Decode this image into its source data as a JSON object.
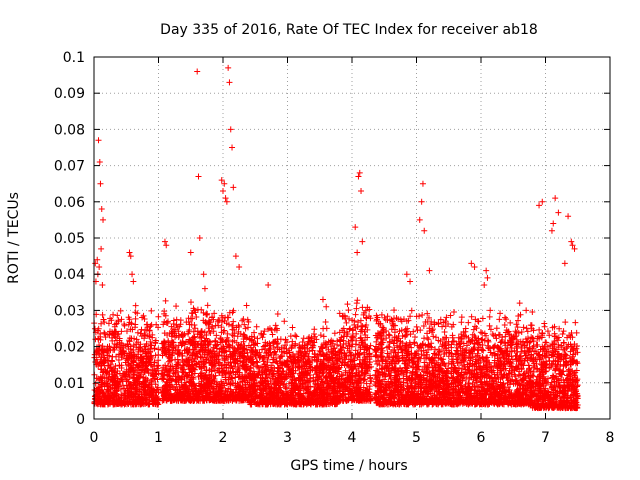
{
  "chart_data": {
    "type": "scatter",
    "title": "Day 335 of 2016, Rate Of TEC Index for receiver ab18",
    "xlabel": "GPS time / hours",
    "ylabel": "ROTI / TECUs",
    "xlim": [
      0,
      8
    ],
    "ylim": [
      0,
      0.1
    ],
    "x_ticks": [
      "0",
      "1",
      "2",
      "3",
      "4",
      "5",
      "6",
      "7",
      "8"
    ],
    "y_ticks": [
      "0",
      "0.01",
      "0.02",
      "0.03",
      "0.04",
      "0.05",
      "0.06",
      "0.07",
      "0.08",
      "0.09",
      "0.1"
    ],
    "grid": true,
    "marker": "+",
    "color": "#ff0000",
    "series": [
      {
        "name": "ROTI",
        "x": [
          0.02,
          0.05,
          0.07,
          0.09,
          0.1,
          0.12,
          0.14,
          0.03,
          0.06,
          0.11,
          0.13,
          0.08,
          0.55,
          0.57,
          0.59,
          0.61,
          1.1,
          1.12,
          1.5,
          1.6,
          1.62,
          1.64,
          1.7,
          1.72,
          1.98,
          2.0,
          2.02,
          2.04,
          2.06,
          2.08,
          2.1,
          2.12,
          2.14,
          2.16,
          2.2,
          2.25,
          2.7,
          4.05,
          4.1,
          4.12,
          4.14,
          4.16,
          4.08,
          5.05,
          5.1,
          5.08,
          5.12,
          5.2,
          4.85,
          4.9,
          5.85,
          5.9,
          6.08,
          6.1,
          6.05,
          6.9,
          6.95,
          7.1,
          7.12,
          7.15,
          7.2,
          7.35,
          7.4,
          7.45,
          7.42,
          7.3,
          6.6,
          6.7,
          3.55,
          3.6,
          2.85,
          2.95
        ],
        "y": [
          0.043,
          0.044,
          0.077,
          0.071,
          0.065,
          0.058,
          0.055,
          0.038,
          0.04,
          0.047,
          0.037,
          0.042,
          0.046,
          0.045,
          0.04,
          0.038,
          0.049,
          0.048,
          0.046,
          0.096,
          0.067,
          0.05,
          0.04,
          0.036,
          0.066,
          0.063,
          0.065,
          0.061,
          0.06,
          0.097,
          0.093,
          0.08,
          0.075,
          0.064,
          0.045,
          0.042,
          0.037,
          0.053,
          0.067,
          0.068,
          0.063,
          0.049,
          0.046,
          0.055,
          0.065,
          0.06,
          0.052,
          0.041,
          0.04,
          0.038,
          0.043,
          0.042,
          0.041,
          0.039,
          0.037,
          0.059,
          0.06,
          0.052,
          0.054,
          0.061,
          0.057,
          0.056,
          0.049,
          0.047,
          0.048,
          0.043,
          0.032,
          0.03,
          0.033,
          0.031,
          0.029,
          0.027
        ]
      }
    ],
    "dense_bands": [
      {
        "x_range": [
          0.0,
          1.0
        ],
        "y_range": [
          0.004,
          0.032
        ]
      },
      {
        "x_range": [
          1.05,
          2.4
        ],
        "y_range": [
          0.005,
          0.033
        ]
      },
      {
        "x_range": [
          2.4,
          3.8
        ],
        "y_range": [
          0.004,
          0.027
        ]
      },
      {
        "x_range": [
          3.8,
          4.3
        ],
        "y_range": [
          0.005,
          0.035
        ]
      },
      {
        "x_range": [
          4.35,
          6.8
        ],
        "y_range": [
          0.004,
          0.031
        ]
      },
      {
        "x_range": [
          6.8,
          7.5
        ],
        "y_range": [
          0.003,
          0.028
        ]
      }
    ]
  }
}
